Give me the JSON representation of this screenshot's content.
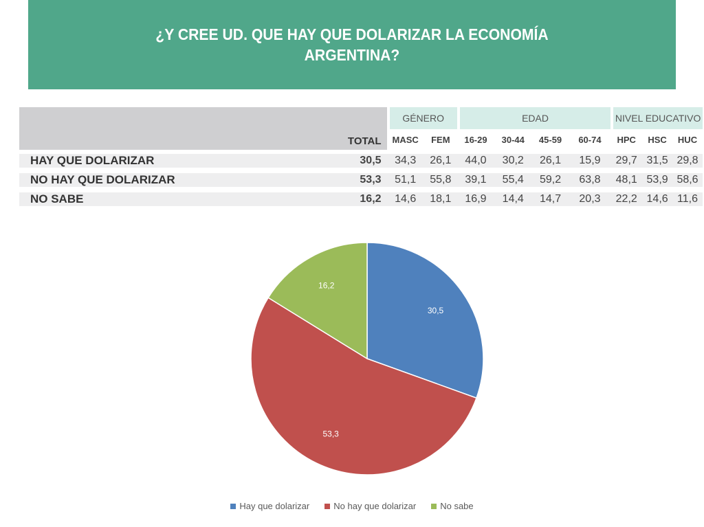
{
  "header": {
    "title_line1": "¿Y CREE UD. QUE HAY QUE DOLARIZAR LA ECONOMÍA",
    "title_line2": "ARGENTINA?"
  },
  "table": {
    "total_label": "TOTAL",
    "groups": {
      "genero": "GÉNERO",
      "edad": "EDAD",
      "nivel": "NIVEL EDUCATIVO"
    },
    "columns": [
      "MASC",
      "FEM",
      "16-29",
      "30-44",
      "45-59",
      "60-74",
      "HPC",
      "HSC",
      "HUC"
    ],
    "rows": [
      {
        "label": "HAY QUE DOLARIZAR",
        "total": "30,5",
        "values": [
          "34,3",
          "26,1",
          "44,0",
          "30,2",
          "26,1",
          "15,9",
          "29,7",
          "31,5",
          "29,8"
        ]
      },
      {
        "label": "NO HAY QUE DOLARIZAR",
        "total": "53,3",
        "values": [
          "51,1",
          "55,8",
          "39,1",
          "55,4",
          "59,2",
          "63,8",
          "48,1",
          "53,9",
          "58,6"
        ]
      },
      {
        "label": "NO SABE",
        "total": "16,2",
        "values": [
          "14,6",
          "18,1",
          "16,9",
          "14,4",
          "14,7",
          "20,3",
          "22,2",
          "14,6",
          "11,6"
        ]
      }
    ]
  },
  "chart_data": {
    "type": "pie",
    "categories": [
      "Hay que dolarizar",
      "No hay que dolarizar",
      "No sabe"
    ],
    "values": [
      30.5,
      53.3,
      16.2
    ],
    "data_labels": [
      "30,5",
      "53,3",
      "16,2"
    ],
    "colors": [
      "#4f81bd",
      "#c0504d",
      "#9bbb59"
    ],
    "legend_position": "bottom"
  }
}
